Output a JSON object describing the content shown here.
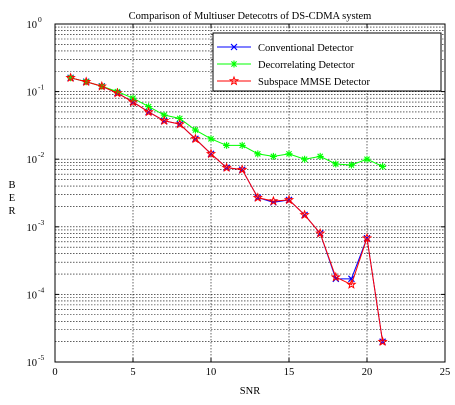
{
  "chart_data": {
    "type": "line",
    "title": "Comparison of Multiuser Detecotrs of DS-CDMA system",
    "xlabel": "SNR",
    "ylabel": "B\nE\nR",
    "xlim": [
      0,
      25
    ],
    "ylim": [
      1e-05,
      1
    ],
    "yscale": "log",
    "grid": true,
    "legend_position": "top-right",
    "x_ticks": [
      0,
      5,
      10,
      15,
      20,
      25
    ],
    "y_ticks": [
      {
        "base": "10",
        "exp": "-5"
      },
      {
        "base": "10",
        "exp": "-4"
      },
      {
        "base": "10",
        "exp": "-3"
      },
      {
        "base": "10",
        "exp": "-2"
      },
      {
        "base": "10",
        "exp": "-1"
      },
      {
        "base": "10",
        "exp": "0"
      }
    ],
    "x": [
      1,
      2,
      3,
      4,
      5,
      6,
      7,
      8,
      9,
      10,
      11,
      12,
      13,
      14,
      15,
      16,
      17,
      18,
      19,
      20,
      21
    ],
    "series": [
      {
        "name": "Conventional Detector",
        "color": "#0000ff",
        "marker": "x",
        "values": [
          0.16,
          0.14,
          0.12,
          0.095,
          0.07,
          0.05,
          0.037,
          0.033,
          0.02,
          0.012,
          0.0075,
          0.007,
          0.0027,
          0.0023,
          0.0025,
          0.0015,
          0.0008,
          0.00017,
          0.00017,
          0.00068,
          2e-05
        ]
      },
      {
        "name": "Decorrelating Detector",
        "color": "#00ff00",
        "marker": "star",
        "values": [
          0.16,
          0.14,
          0.12,
          0.1,
          0.08,
          0.06,
          0.045,
          0.04,
          0.027,
          0.02,
          0.016,
          0.016,
          0.012,
          0.011,
          0.012,
          0.01,
          0.011,
          0.0085,
          0.0082,
          0.01,
          0.0078
        ]
      },
      {
        "name": "Subspace MMSE Detector",
        "color": "#ff0000",
        "marker": "pentagram",
        "values": [
          0.16,
          0.14,
          0.12,
          0.095,
          0.07,
          0.05,
          0.037,
          0.033,
          0.02,
          0.012,
          0.0075,
          0.007,
          0.0027,
          0.0024,
          0.0025,
          0.0015,
          0.0008,
          0.00018,
          0.00014,
          0.00068,
          2e-05
        ]
      }
    ]
  }
}
